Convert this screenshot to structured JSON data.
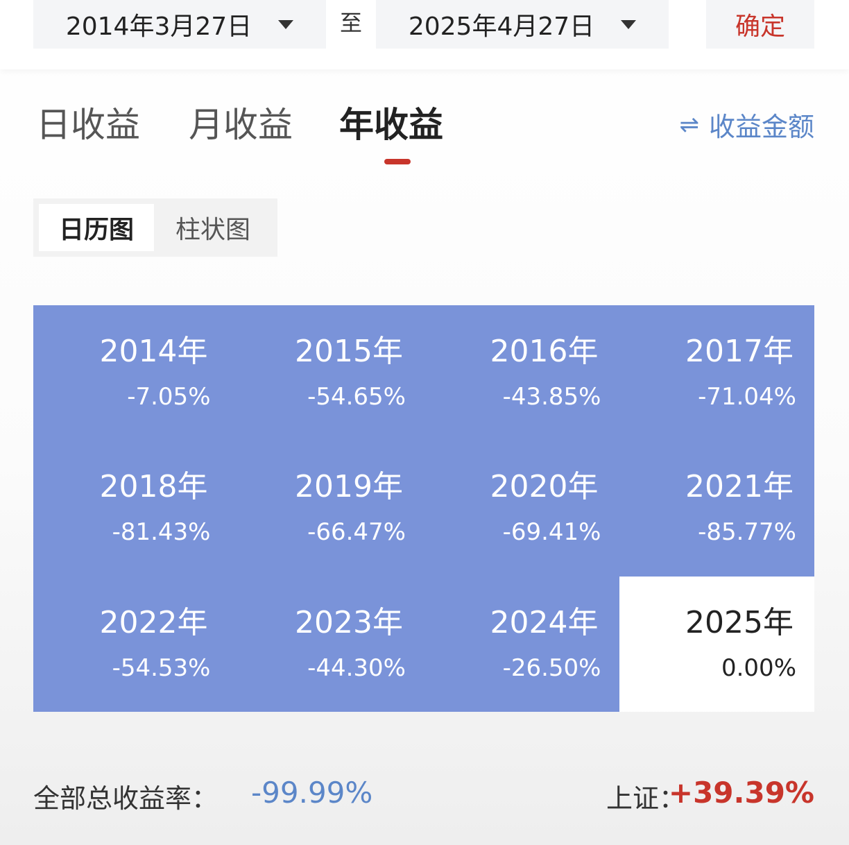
{
  "date_range": {
    "start": "2014年3月27日",
    "to": "至",
    "end": "2025年4月27日",
    "confirm_label": "确定"
  },
  "tabs": [
    {
      "label": "日收益",
      "active": false
    },
    {
      "label": "月收益",
      "active": false
    },
    {
      "label": "年收益",
      "active": true
    }
  ],
  "toggle_amount": {
    "icon": "swap-icon",
    "label": "收益金额"
  },
  "view_switch": [
    {
      "label": "日历图",
      "active": true
    },
    {
      "label": "柱状图",
      "active": false
    }
  ],
  "years": [
    {
      "year": "2014年",
      "pct": "-7.05%"
    },
    {
      "year": "2015年",
      "pct": "-54.65%"
    },
    {
      "year": "2016年",
      "pct": "-43.85%"
    },
    {
      "year": "2017年",
      "pct": "-71.04%"
    },
    {
      "year": "2018年",
      "pct": "-81.43%"
    },
    {
      "year": "2019年",
      "pct": "-66.47%"
    },
    {
      "year": "2020年",
      "pct": "-69.41%"
    },
    {
      "year": "2021年",
      "pct": "-85.77%"
    },
    {
      "year": "2022年",
      "pct": "-54.53%"
    },
    {
      "year": "2023年",
      "pct": "-44.30%"
    },
    {
      "year": "2024年",
      "pct": "-26.50%"
    },
    {
      "year": "2025年",
      "pct": "0.00%"
    }
  ],
  "summary": {
    "total_label": "全部总收益率：",
    "total_value": "-99.99%",
    "index_label": "上证：",
    "index_value": "+39.39%"
  },
  "colors": {
    "accent_red": "#c8352b",
    "accent_blue": "#5b86c8",
    "loss_cell": "#7a93d9",
    "neutral_cell": "#ffffff"
  }
}
